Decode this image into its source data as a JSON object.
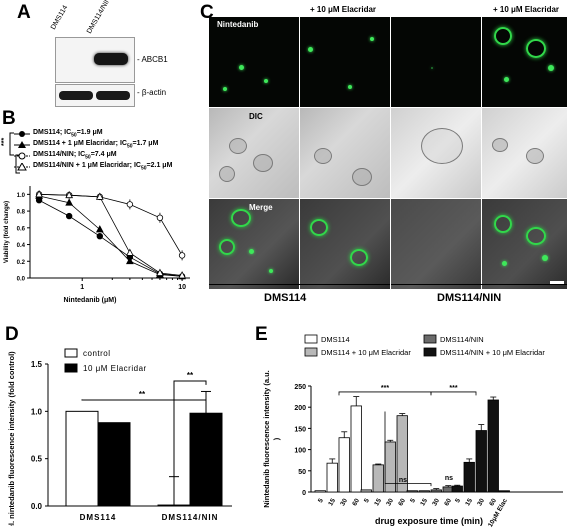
{
  "panels": {
    "a": "A",
    "b": "B",
    "c": "C",
    "d": "D",
    "e": "E"
  },
  "panel_a": {
    "lanes": [
      "DMS114",
      "DMS114/NIN"
    ],
    "bands": [
      "- ABCB1",
      "- β-actin"
    ]
  },
  "panel_b": {
    "significance": "***",
    "legend": [
      {
        "text": "DMS114; IC",
        "sub": "50",
        "rest": "=1.9 μM"
      },
      {
        "text": "DMS114 + 1 μM Elacridar; IC",
        "sub": "50",
        "rest": "=1.7 μM"
      },
      {
        "text": "DMS114/NIN; IC",
        "sub": "50",
        "rest": "=7.4 μM"
      },
      {
        "text": "DMS114/NIN + 1 μM Elacridar; IC",
        "sub": "50",
        "rest": "=2.1 μM"
      }
    ],
    "chart_data": {
      "type": "line",
      "xlabel": "Nintedanib (μM)",
      "ylabel": "Viability (fold change)",
      "xscale": "log",
      "xlim": [
        0.3,
        12
      ],
      "ylim": [
        0,
        1.1
      ],
      "xticks": [
        "1",
        "10"
      ],
      "yticks": [
        "0.0",
        "0.2",
        "0.4",
        "0.6",
        "0.8",
        "1.0"
      ],
      "x": [
        0.37,
        0.74,
        1.5,
        3.0,
        6.0,
        10.0
      ],
      "series": [
        {
          "name": "DMS114; IC50=1.9 μM",
          "marker": "filled-circle",
          "values": [
            0.93,
            0.74,
            0.5,
            0.25,
            0.05,
            0.02
          ]
        },
        {
          "name": "DMS114 + 1 μM Elacridar; IC50=1.7 μM",
          "marker": "filled-triangle",
          "values": [
            0.98,
            0.9,
            0.58,
            0.2,
            0.04,
            0.02
          ]
        },
        {
          "name": "DMS114/NIN; IC50=7.4 μM",
          "marker": "open-circle",
          "values": [
            1.0,
            0.99,
            0.97,
            0.88,
            0.72,
            0.27
          ]
        },
        {
          "name": "DMS114/NIN + 1 μM Elacridar; IC50=2.1 μM",
          "marker": "open-triangle",
          "values": [
            1.0,
            0.99,
            0.97,
            0.3,
            0.06,
            0.03
          ]
        }
      ]
    }
  },
  "panel_c": {
    "col_headers": [
      "+ 10 μM Elacridar",
      "+ 10 μM Elacridar"
    ],
    "row_labels": [
      "Nintedanib",
      "DIC",
      "Merge"
    ],
    "cell_lines": [
      "DMS114",
      "DMS114/NIN"
    ]
  },
  "panel_d": {
    "legend": [
      "control",
      "10 μM Elacridar"
    ],
    "significance": [
      "**",
      "**"
    ],
    "chart_data": {
      "type": "bar",
      "ylabel": "Rel. nintedanib fluorescence intensity (fold control)",
      "ylim": [
        0,
        1.5
      ],
      "yticks": [
        "0.0",
        "0.5",
        "1.0",
        "1.5"
      ],
      "categories": [
        "DMS114",
        "DMS114/NIN"
      ],
      "series": [
        {
          "name": "control",
          "color": "#ffffff",
          "values": [
            1.0,
            0.01
          ]
        },
        {
          "name": "10 μM Elacridar",
          "color": "#000000",
          "values": [
            0.88,
            0.98
          ]
        }
      ],
      "errors": [
        [
          0,
          0
        ],
        [
          0.3,
          0.23
        ]
      ]
    }
  },
  "panel_e": {
    "legend": [
      "DMS114",
      "DMS114 + 10 μM Elacridar",
      "DMS114/NIN",
      "DMS114/NIN + 10 μM Elacridar"
    ],
    "significance": [
      "***",
      "***",
      "ns",
      "ns"
    ],
    "chart_data": {
      "type": "bar",
      "ylabel": "Nintedanib fluorescence intensity (a.u.)",
      "xlabel": "drug exposure time (min)",
      "ylim": [
        0,
        250
      ],
      "yticks": [
        "0",
        "50",
        "100",
        "150",
        "200",
        "250"
      ],
      "groups": [
        {
          "name": "DMS114",
          "color": "#ffffff",
          "x": [
            "5",
            "15",
            "30",
            "60"
          ],
          "values": [
            3,
            68,
            128,
            203
          ],
          "errors": [
            0,
            10,
            14,
            22
          ]
        },
        {
          "name": "DMS114 + 10 μM Elacridar",
          "color": "#b8b8b8",
          "x": [
            "5",
            "15",
            "30",
            "60"
          ],
          "values": [
            5,
            64,
            118,
            180
          ],
          "errors": [
            0,
            2,
            4,
            5
          ]
        },
        {
          "name": "DMS114/NIN",
          "color": "#6b6b6b",
          "x": [
            "5",
            "15",
            "30",
            "60"
          ],
          "values": [
            3,
            3,
            5,
            12
          ],
          "errors": [
            0,
            0,
            3,
            3
          ]
        },
        {
          "name": "DMS114/NIN + 10 μM Elacridar",
          "color": "#111111",
          "x": [
            "5",
            "15",
            "30",
            "60"
          ],
          "values": [
            14,
            70,
            145,
            217
          ],
          "errors": [
            2,
            8,
            14,
            7
          ]
        },
        {
          "name": "",
          "color": "#111111",
          "x": [
            "10μM Elac"
          ],
          "values": [
            3
          ],
          "errors": [
            0
          ]
        }
      ]
    }
  }
}
